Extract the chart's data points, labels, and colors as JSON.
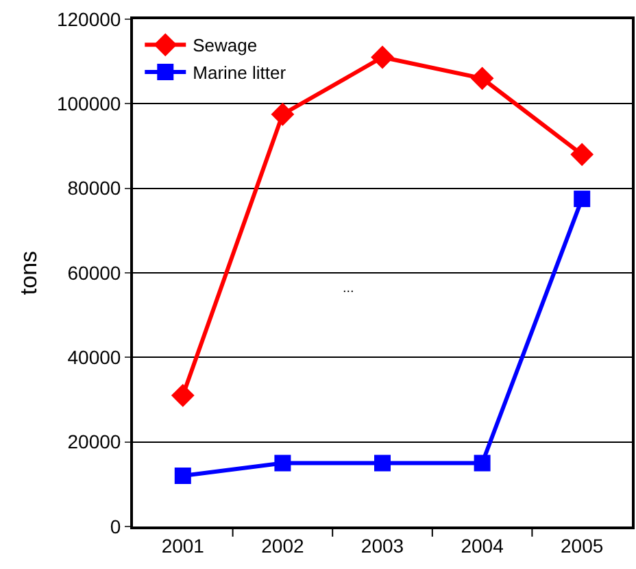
{
  "chart_data": {
    "type": "line",
    "ylabel": "tons",
    "categories": [
      "2001",
      "2002",
      "2003",
      "2004",
      "2005"
    ],
    "series": [
      {
        "name": "Sewage",
        "color": "#ff0000",
        "marker": "diamond",
        "values": [
          31000,
          97500,
          111000,
          106000,
          88000
        ]
      },
      {
        "name": "Marine litter",
        "color": "#0000ff",
        "marker": "square",
        "values": [
          12000,
          15000,
          15000,
          15000,
          77500
        ]
      }
    ],
    "ylim": [
      0,
      120000
    ],
    "yticks": [
      0,
      20000,
      40000,
      60000,
      80000,
      100000,
      120000
    ],
    "grid": "y",
    "legend": "top left",
    "line_style": "solid",
    "annotations": [
      "..."
    ]
  }
}
